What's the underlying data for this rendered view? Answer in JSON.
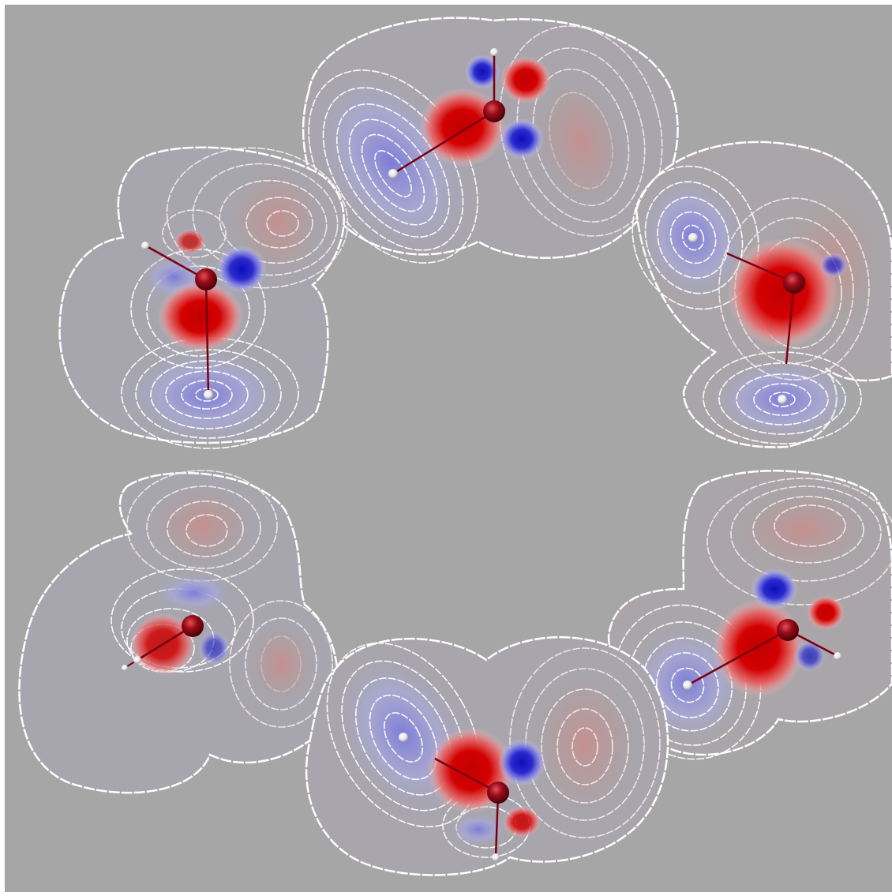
{
  "scene": {
    "background_color": "#a6a6a6",
    "contour_color": "#ffffff",
    "positive_lobe_color": "#d40000",
    "negative_lobe_color": "#1a1ad4",
    "oxygen_color": "#8b0a14",
    "hydrogen_color": "#f2f2f2",
    "bond_color": "#7a0010",
    "molecule_count": 6,
    "molecules": [
      {
        "name": "water-top"
      },
      {
        "name": "water-upper-left"
      },
      {
        "name": "water-upper-right"
      },
      {
        "name": "water-lower-left"
      },
      {
        "name": "water-lower-right"
      },
      {
        "name": "water-bottom"
      }
    ]
  }
}
